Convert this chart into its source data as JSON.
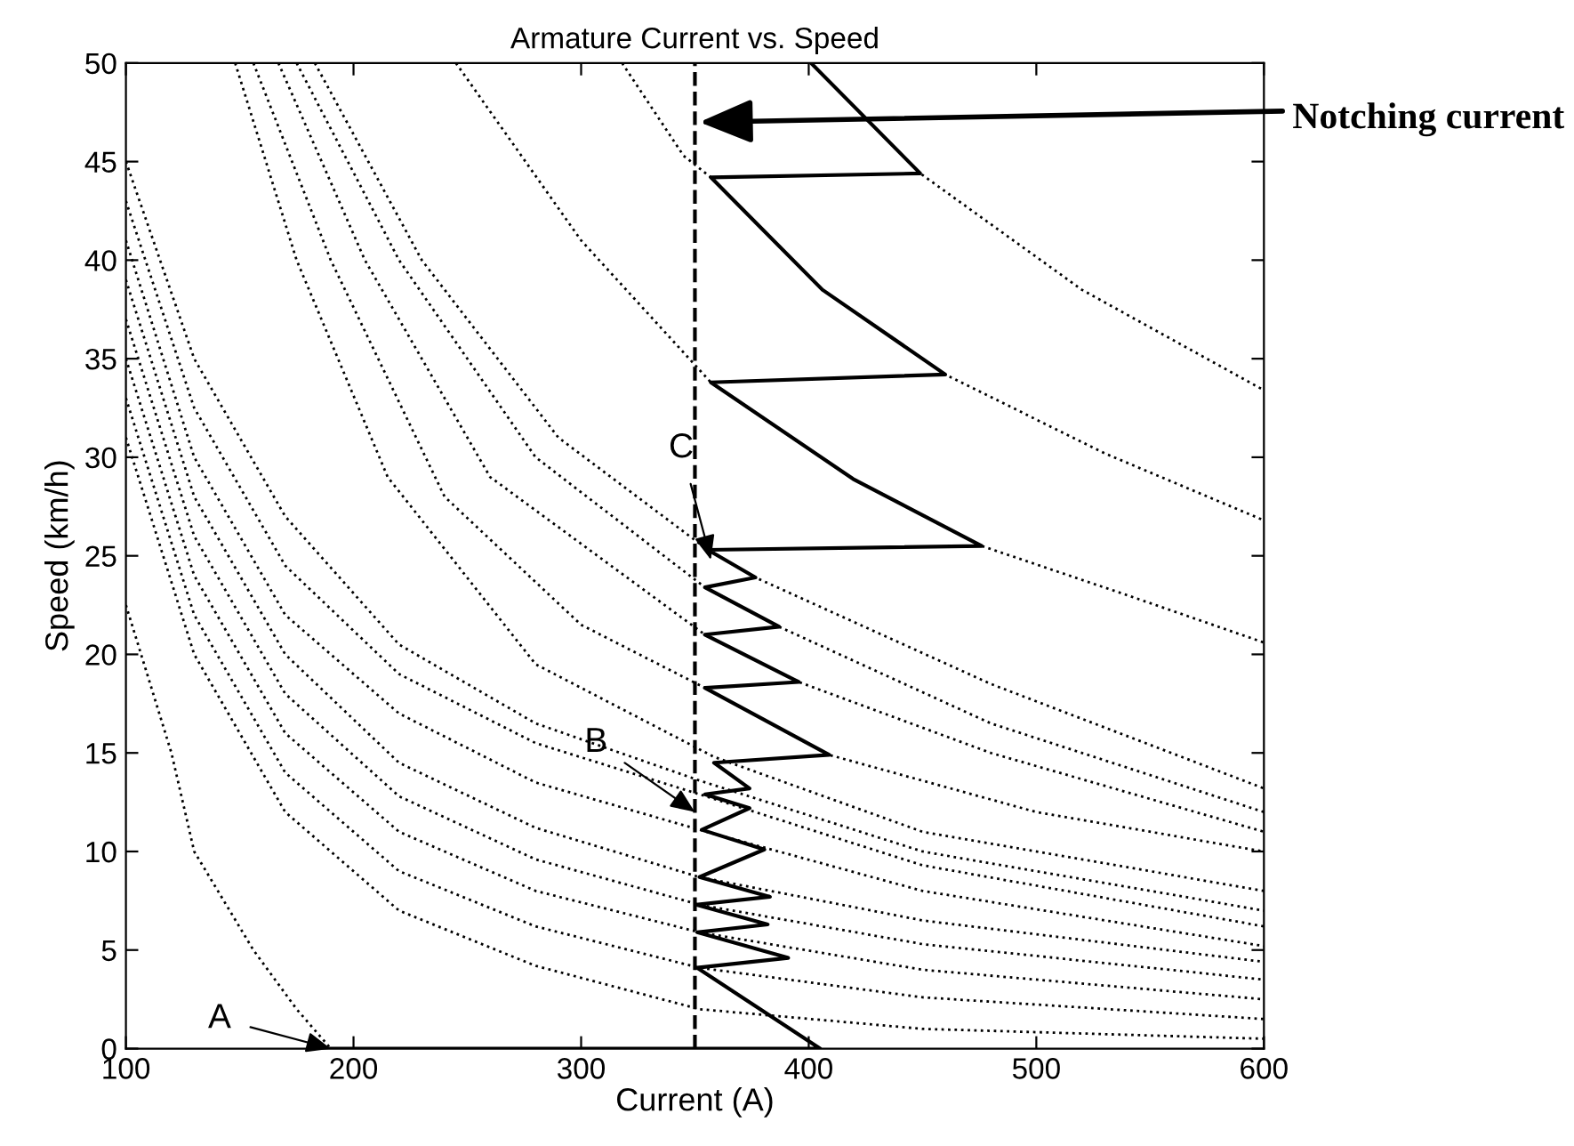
{
  "chart_data": {
    "type": "line",
    "title": "Armature Current vs. Speed",
    "xlabel": "Current (A)",
    "ylabel": "Speed (km/h)",
    "xlim": [
      100,
      600
    ],
    "xticks": [
      100,
      200,
      300,
      400,
      500,
      600
    ],
    "ylim": [
      0,
      50
    ],
    "yticks": [
      0,
      5,
      10,
      15,
      20,
      25,
      30,
      35,
      40,
      45,
      50
    ],
    "series": [
      {
        "color": "#000000",
        "line_style": "dotted",
        "x": [
          100,
          120,
          130,
          156,
          175,
          190
        ],
        "values": [
          22.5,
          15,
          10,
          5,
          2,
          0
        ]
      },
      {
        "color": "#000000",
        "line_style": "dotted",
        "x": [
          100,
          130,
          170,
          220,
          280,
          352,
          450,
          600
        ],
        "values": [
          45,
          35,
          27,
          20.5,
          16.5,
          13.6,
          10,
          7.0
        ]
      },
      {
        "color": "#000000",
        "line_style": "dotted",
        "x": [
          100,
          130,
          170,
          220,
          280,
          352,
          450,
          600
        ],
        "values": [
          43,
          32.5,
          24.5,
          19,
          15.5,
          12.9,
          9.3,
          6.2
        ]
      },
      {
        "color": "#000000",
        "line_style": "dotted",
        "x": [
          100,
          130,
          170,
          220,
          280,
          352,
          450,
          600
        ],
        "values": [
          41,
          30,
          22,
          17,
          13.5,
          11.1,
          8.0,
          5.2
        ]
      },
      {
        "color": "#000000",
        "line_style": "dotted",
        "x": [
          100,
          130,
          170,
          220,
          280,
          352,
          450,
          600
        ],
        "values": [
          39,
          28,
          20,
          14.5,
          11.2,
          8.7,
          6.5,
          4.4
        ]
      },
      {
        "color": "#000000",
        "line_style": "dotted",
        "x": [
          100,
          130,
          170,
          220,
          280,
          352,
          450,
          600
        ],
        "values": [
          37,
          26,
          18,
          12.8,
          9.6,
          7.3,
          5.3,
          3.5
        ]
      },
      {
        "color": "#000000",
        "line_style": "dotted",
        "x": [
          100,
          130,
          170,
          220,
          280,
          352,
          450,
          600
        ],
        "values": [
          35,
          24,
          16,
          11,
          8,
          5.9,
          4.0,
          2.5
        ]
      },
      {
        "color": "#000000",
        "line_style": "dotted",
        "x": [
          100,
          130,
          170,
          220,
          280,
          352,
          450,
          600
        ],
        "values": [
          33,
          22,
          14,
          9,
          6.2,
          4.1,
          2.6,
          1.5
        ]
      },
      {
        "color": "#000000",
        "line_style": "dotted",
        "x": [
          100,
          130,
          170,
          220,
          280,
          352,
          450,
          600
        ],
        "values": [
          31,
          20,
          12,
          7,
          4.2,
          2.0,
          1.0,
          0.5
        ]
      },
      {
        "color": "#000000",
        "line_style": "dotted",
        "x": [
          148,
          175,
          215,
          280,
          358.4,
          450,
          600
        ],
        "values": [
          50,
          40,
          29,
          19.5,
          14.8,
          11,
          8.0
        ]
      },
      {
        "color": "#000000",
        "line_style": "dotted",
        "x": [
          156,
          190,
          240,
          300,
          354.4,
          409,
          500,
          600
        ],
        "values": [
          50,
          40,
          28,
          21.5,
          18.3,
          14.9,
          12,
          10.0
        ]
      },
      {
        "color": "#000000",
        "line_style": "dotted",
        "x": [
          167,
          205,
          260,
          354.4,
          395.6,
          480,
          600
        ],
        "values": [
          50,
          40,
          29,
          21.0,
          18.6,
          15,
          11.0
        ]
      },
      {
        "color": "#000000",
        "line_style": "dotted",
        "x": [
          175,
          220,
          280,
          354.4,
          387,
          480,
          600
        ],
        "values": [
          50,
          40,
          30,
          23.4,
          21.4,
          16.5,
          12.0
        ]
      },
      {
        "color": "#000000",
        "line_style": "dotted",
        "x": [
          183,
          230,
          290,
          355.7,
          376.6,
          480,
          600
        ],
        "values": [
          50,
          40,
          31,
          25.3,
          23.9,
          18.5,
          13.2
        ]
      },
      {
        "color": "#000000",
        "line_style": "dotted",
        "x": [
          245,
          300,
          357,
          419.5,
          476,
          540,
          600
        ],
        "values": [
          50,
          41,
          33.8,
          28.9,
          25.5,
          23,
          20.6
        ]
      },
      {
        "color": "#000000",
        "line_style": "dotted",
        "x": [
          318,
          345,
          357,
          406,
          460,
          530,
          600
        ],
        "values": [
          50,
          45.3,
          44.2,
          38.5,
          34.2,
          30.2,
          26.8
        ]
      },
      {
        "color": "#000000",
        "line_style": "dotted",
        "x": [
          401,
          449,
          520,
          600
        ],
        "values": [
          50,
          44.4,
          38.5,
          33.4
        ]
      },
      {
        "color": "#000000",
        "line_style": "solid",
        "x": [
          190,
          405,
          351,
          391,
          351,
          382,
          350.5,
          383,
          352,
          380.5,
          353,
          374,
          354.4,
          374,
          358.4,
          409,
          354.4,
          395.6,
          354.4,
          387,
          354.4,
          376.6,
          355.7,
          476,
          419.5,
          357,
          460,
          406,
          357,
          449,
          401
        ],
        "values": [
          0,
          0,
          4.1,
          4.6,
          5.9,
          6.3,
          7.3,
          7.7,
          8.7,
          10.1,
          11.1,
          12.2,
          12.9,
          13.2,
          14.5,
          14.9,
          18.3,
          18.6,
          21.0,
          21.4,
          23.4,
          23.9,
          25.3,
          25.5,
          28.9,
          33.8,
          34.2,
          38.5,
          44.2,
          44.4,
          50
        ]
      }
    ],
    "ref_lines": [
      {
        "axis": "x",
        "value": 350,
        "color": "#000000",
        "line_style": "dashed"
      }
    ],
    "annotations": [
      {
        "text": "A",
        "x": 190,
        "y": 0
      },
      {
        "text": "B",
        "x": 350,
        "y": 12
      },
      {
        "text": "C",
        "x": 357,
        "y": 24.8
      },
      {
        "text": "Notching current",
        "x": 352,
        "y": 47
      }
    ]
  }
}
